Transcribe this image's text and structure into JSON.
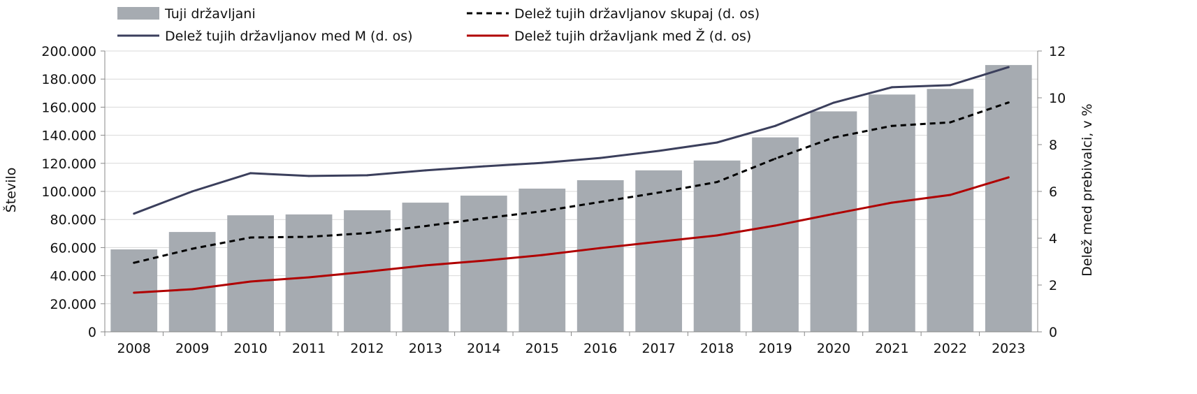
{
  "chart_data": {
    "type": "bar+line",
    "title": "",
    "xlabel": "",
    "ylabel": "Število",
    "ylabel_right": "Delež med prebivalci, v %",
    "ylim": [
      0,
      200000
    ],
    "ylim_right": [
      0,
      12
    ],
    "yticks": [
      "0",
      "20.000",
      "40.000",
      "60.000",
      "80.000",
      "100.000",
      "120.000",
      "140.000",
      "160.000",
      "180.000",
      "200.000"
    ],
    "yticks_right": [
      "0",
      "2",
      "4",
      "6",
      "8",
      "10",
      "12"
    ],
    "grid": true,
    "legend_position": "top",
    "categories": [
      "2008",
      "2009",
      "2010",
      "2011",
      "2012",
      "2013",
      "2014",
      "2015",
      "2016",
      "2017",
      "2018",
      "2019",
      "2020",
      "2021",
      "2022",
      "2023"
    ],
    "series": [
      {
        "name": "Tuji državljani",
        "kind": "bar",
        "axis": "left",
        "color": "#a6abb1",
        "values": [
          58700,
          71100,
          83000,
          83600,
          86600,
          92000,
          97000,
          102000,
          108000,
          115000,
          122000,
          138500,
          157000,
          169000,
          173000,
          190000
        ]
      },
      {
        "name": "Delež tujih državljanov skupaj (d. os)",
        "kind": "line",
        "style": "dashed",
        "axis": "right",
        "color": "#000000",
        "values": [
          2.95,
          3.55,
          4.03,
          4.06,
          4.22,
          4.52,
          4.85,
          5.15,
          5.55,
          5.95,
          6.4,
          7.4,
          8.3,
          8.8,
          8.95,
          9.8
        ]
      },
      {
        "name": "Delež tujih državljanov med M (d. os)",
        "kind": "line",
        "style": "solid",
        "axis": "right",
        "color": "#3b3f5c",
        "values": [
          5.05,
          6.0,
          6.78,
          6.66,
          6.69,
          6.9,
          7.07,
          7.22,
          7.43,
          7.73,
          8.09,
          8.8,
          9.79,
          10.45,
          10.54,
          11.31
        ]
      },
      {
        "name": "Delež tujih državljank med Ž (d. os)",
        "kind": "line",
        "style": "solid",
        "axis": "right",
        "color": "#b00000",
        "values": [
          1.67,
          1.82,
          2.15,
          2.33,
          2.57,
          2.84,
          3.04,
          3.28,
          3.58,
          3.85,
          4.12,
          4.54,
          5.04,
          5.52,
          5.85,
          6.6
        ]
      }
    ]
  }
}
